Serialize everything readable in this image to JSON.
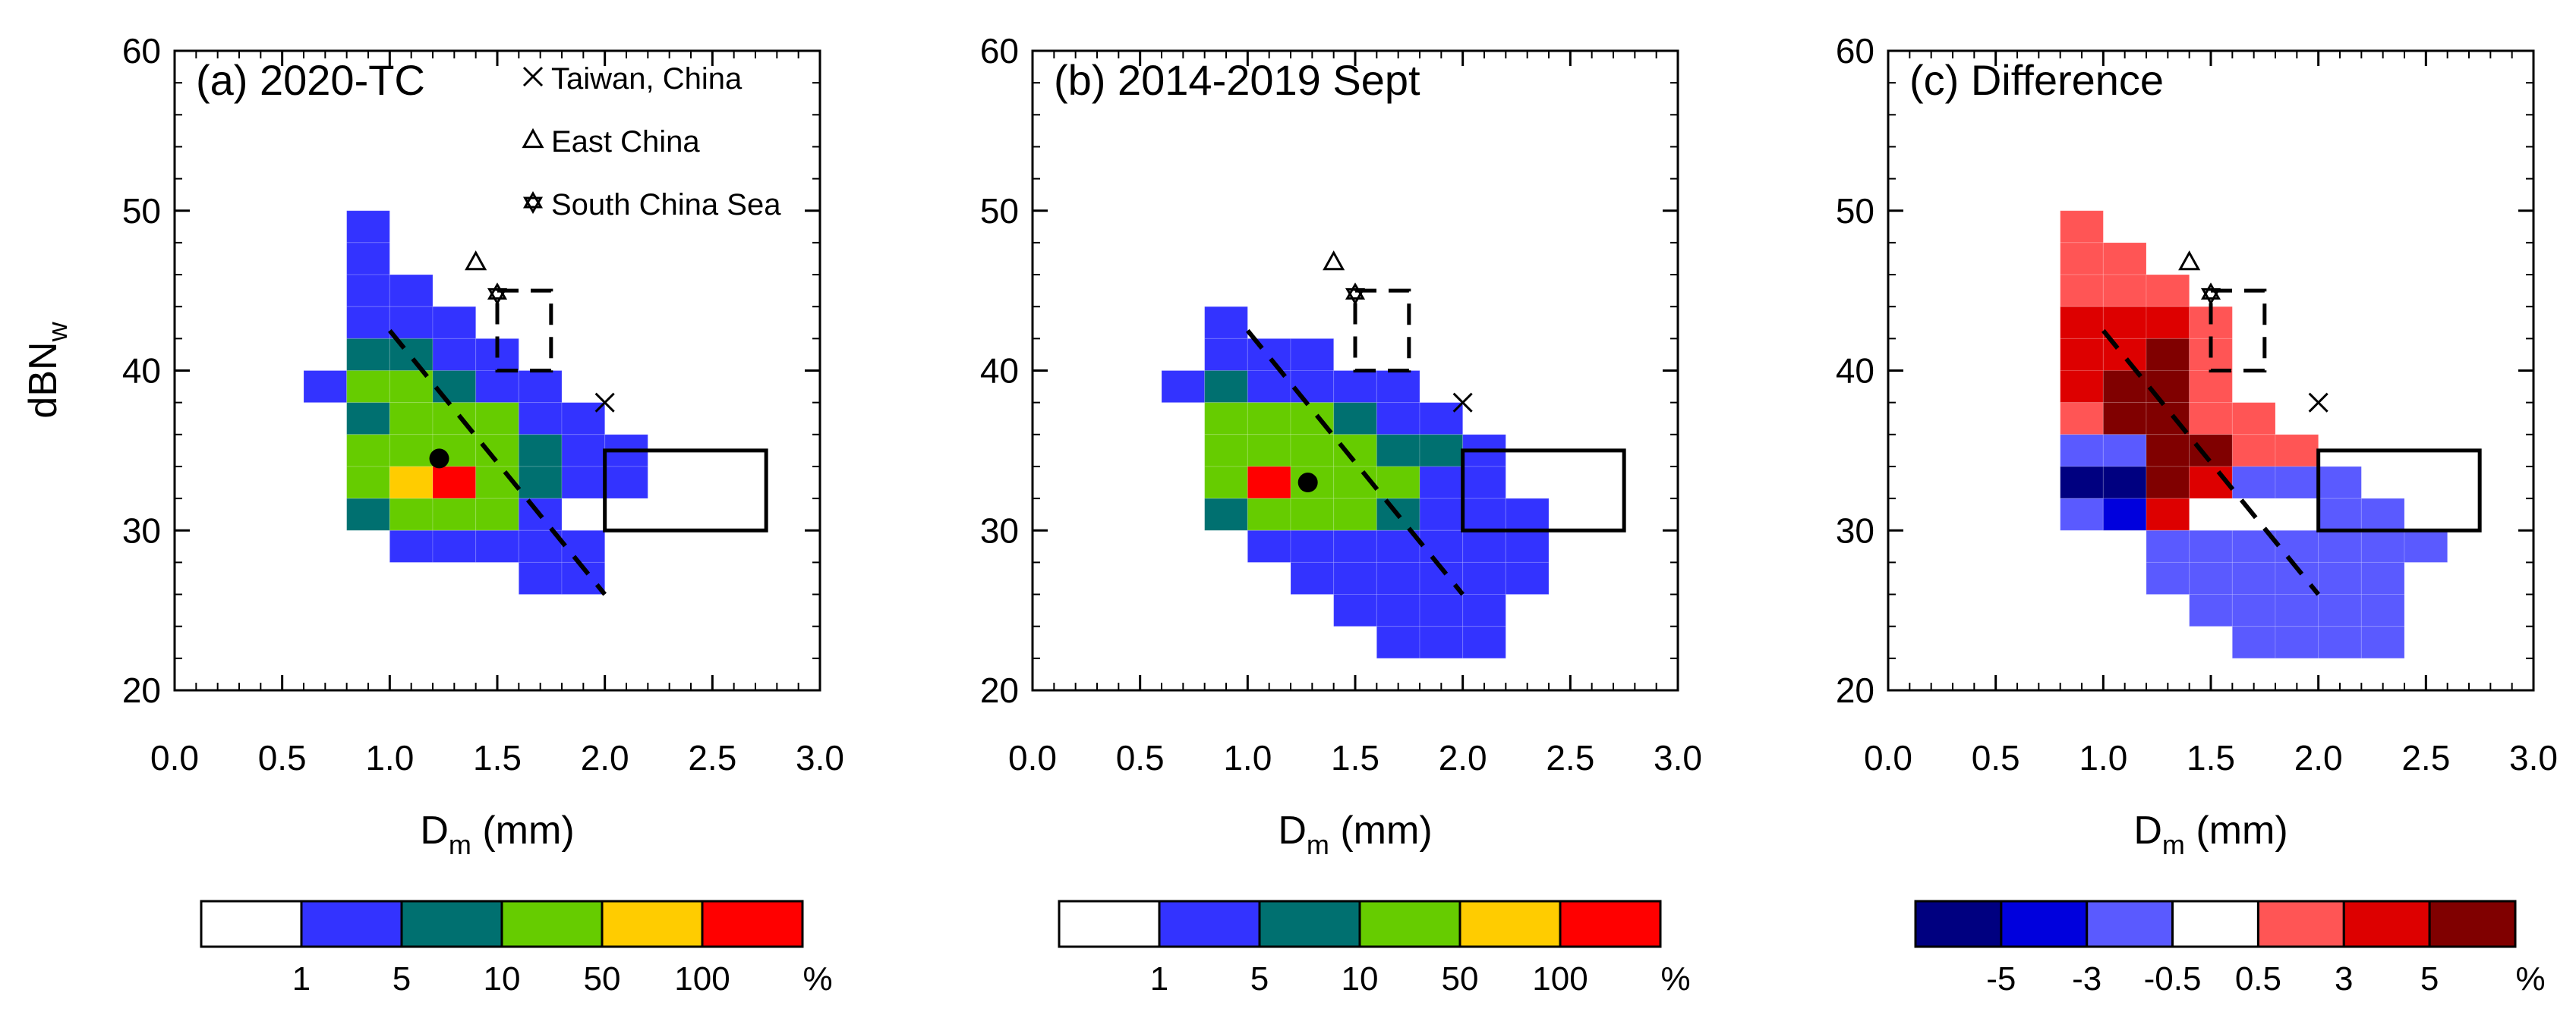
{
  "chart_data": [
    {
      "type": "heatmap",
      "panel": "a",
      "title": "(a) 2020-TC",
      "xlabel_main": "D",
      "xlabel_sub": "m",
      "xlabel_unit": " (mm)",
      "ylabel_main": "dBN",
      "ylabel_sub": "w",
      "xlim": [
        0,
        3
      ],
      "ylim": [
        20,
        60
      ],
      "xticks": [
        "0.0",
        "0.5",
        "1.0",
        "1.5",
        "2.0",
        "2.5",
        "3.0"
      ],
      "yticks": [
        "20",
        "30",
        "40",
        "50",
        "60"
      ],
      "cell_size": {
        "dx": 0.2,
        "dy": 2
      },
      "legend": [
        {
          "marker": "cross",
          "label": "Taiwan, China"
        },
        {
          "marker": "triangle",
          "label": "East China"
        },
        {
          "marker": "star",
          "label": "South China Sea"
        }
      ],
      "colorbar": {
        "colors": [
          "#ffffff",
          "#3333ff",
          "#007070",
          "#66cc00",
          "#ffcc00",
          "#ff0000"
        ],
        "labels": [
          "1",
          "5",
          "10",
          "50",
          "100"
        ],
        "unit": "%"
      },
      "reference_markers": [
        {
          "type": "cross",
          "x": 2.0,
          "y": 38
        },
        {
          "type": "triangle",
          "x": 1.4,
          "y": 46.8
        },
        {
          "type": "star",
          "x": 1.5,
          "y": 44.8
        }
      ],
      "mean_point": {
        "x": 1.23,
        "y": 34.5
      },
      "fit_line": {
        "x": [
          1.0,
          2.0
        ],
        "y": [
          42.5,
          26
        ]
      },
      "box_solid": {
        "x": [
          2.0,
          2.75
        ],
        "y": [
          30,
          35
        ]
      },
      "box_dashed": {
        "x": [
          1.5,
          1.75
        ],
        "y": [
          40,
          45
        ]
      },
      "cells": [
        [
          0.8,
          48,
          1
        ],
        [
          0.8,
          46,
          1
        ],
        [
          0.8,
          44,
          1
        ],
        [
          1.0,
          44,
          1
        ],
        [
          0.8,
          42,
          1
        ],
        [
          1.0,
          42,
          1
        ],
        [
          1.2,
          42,
          1
        ],
        [
          0.8,
          40,
          2
        ],
        [
          1.0,
          40,
          2
        ],
        [
          1.2,
          40,
          1
        ],
        [
          1.4,
          40,
          1
        ],
        [
          0.6,
          38,
          1
        ],
        [
          0.8,
          38,
          3
        ],
        [
          1.0,
          38,
          3
        ],
        [
          1.2,
          38,
          2
        ],
        [
          1.4,
          38,
          1
        ],
        [
          1.6,
          38,
          1
        ],
        [
          0.8,
          36,
          2
        ],
        [
          1.0,
          36,
          3
        ],
        [
          1.2,
          36,
          3
        ],
        [
          1.4,
          36,
          3
        ],
        [
          1.6,
          36,
          1
        ],
        [
          1.8,
          36,
          1
        ],
        [
          0.8,
          34,
          3
        ],
        [
          1.0,
          34,
          3
        ],
        [
          1.2,
          34,
          3
        ],
        [
          1.4,
          34,
          3
        ],
        [
          1.6,
          34,
          2
        ],
        [
          1.8,
          34,
          1
        ],
        [
          2.0,
          34,
          1
        ],
        [
          0.8,
          32,
          3
        ],
        [
          1.0,
          32,
          4
        ],
        [
          1.2,
          32,
          5
        ],
        [
          1.4,
          32,
          3
        ],
        [
          1.6,
          32,
          2
        ],
        [
          1.8,
          32,
          1
        ],
        [
          2.0,
          32,
          1
        ],
        [
          0.8,
          30,
          2
        ],
        [
          1.0,
          30,
          3
        ],
        [
          1.2,
          30,
          3
        ],
        [
          1.4,
          30,
          3
        ],
        [
          1.6,
          30,
          1
        ],
        [
          1.0,
          28,
          1
        ],
        [
          1.2,
          28,
          1
        ],
        [
          1.4,
          28,
          1
        ],
        [
          1.6,
          28,
          1
        ],
        [
          1.8,
          28,
          1
        ],
        [
          1.6,
          26,
          1
        ],
        [
          1.8,
          26,
          1
        ]
      ]
    },
    {
      "type": "heatmap",
      "panel": "b",
      "title": "(b) 2014-2019 Sept",
      "xlabel_main": "D",
      "xlabel_sub": "m",
      "xlabel_unit": " (mm)",
      "xlim": [
        0,
        3
      ],
      "ylim": [
        20,
        60
      ],
      "xticks": [
        "0.0",
        "0.5",
        "1.0",
        "1.5",
        "2.0",
        "2.5",
        "3.0"
      ],
      "yticks": [
        "20",
        "30",
        "40",
        "50",
        "60"
      ],
      "cell_size": {
        "dx": 0.2,
        "dy": 2
      },
      "colorbar": {
        "colors": [
          "#ffffff",
          "#3333ff",
          "#007070",
          "#66cc00",
          "#ffcc00",
          "#ff0000"
        ],
        "labels": [
          "1",
          "5",
          "10",
          "50",
          "100"
        ],
        "unit": "%"
      },
      "reference_markers": [
        {
          "type": "cross",
          "x": 2.0,
          "y": 38
        },
        {
          "type": "triangle",
          "x": 1.4,
          "y": 46.8
        },
        {
          "type": "star",
          "x": 1.5,
          "y": 44.8
        }
      ],
      "mean_point": {
        "x": 1.28,
        "y": 33
      },
      "fit_line": {
        "x": [
          1.0,
          2.0
        ],
        "y": [
          42.5,
          26
        ]
      },
      "box_solid": {
        "x": [
          2.0,
          2.75
        ],
        "y": [
          30,
          35
        ]
      },
      "box_dashed": {
        "x": [
          1.5,
          1.75
        ],
        "y": [
          40,
          45
        ]
      },
      "cells": [
        [
          0.8,
          42,
          1
        ],
        [
          0.8,
          40,
          1
        ],
        [
          1.0,
          40,
          1
        ],
        [
          1.2,
          40,
          1
        ],
        [
          0.6,
          38,
          1
        ],
        [
          0.8,
          38,
          2
        ],
        [
          1.0,
          38,
          1
        ],
        [
          1.2,
          38,
          1
        ],
        [
          1.4,
          38,
          1
        ],
        [
          1.6,
          38,
          1
        ],
        [
          0.8,
          36,
          3
        ],
        [
          1.0,
          36,
          3
        ],
        [
          1.2,
          36,
          3
        ],
        [
          1.4,
          36,
          2
        ],
        [
          1.6,
          36,
          1
        ],
        [
          1.8,
          36,
          1
        ],
        [
          0.8,
          34,
          3
        ],
        [
          1.0,
          34,
          3
        ],
        [
          1.2,
          34,
          3
        ],
        [
          1.4,
          34,
          3
        ],
        [
          1.6,
          34,
          2
        ],
        [
          1.8,
          34,
          2
        ],
        [
          2.0,
          34,
          1
        ],
        [
          0.8,
          32,
          3
        ],
        [
          1.0,
          32,
          5
        ],
        [
          1.2,
          32,
          3
        ],
        [
          1.4,
          32,
          3
        ],
        [
          1.6,
          32,
          3
        ],
        [
          1.8,
          32,
          1
        ],
        [
          2.0,
          32,
          1
        ],
        [
          0.8,
          30,
          2
        ],
        [
          1.0,
          30,
          3
        ],
        [
          1.2,
          30,
          3
        ],
        [
          1.4,
          30,
          3
        ],
        [
          1.6,
          30,
          2
        ],
        [
          1.8,
          30,
          1
        ],
        [
          2.0,
          30,
          1
        ],
        [
          2.2,
          30,
          1
        ],
        [
          1.0,
          28,
          1
        ],
        [
          1.2,
          28,
          1
        ],
        [
          1.4,
          28,
          1
        ],
        [
          1.6,
          28,
          1
        ],
        [
          1.8,
          28,
          1
        ],
        [
          2.0,
          28,
          1
        ],
        [
          2.2,
          28,
          1
        ],
        [
          1.2,
          26,
          1
        ],
        [
          1.4,
          26,
          1
        ],
        [
          1.6,
          26,
          1
        ],
        [
          1.8,
          26,
          1
        ],
        [
          2.0,
          26,
          1
        ],
        [
          2.2,
          26,
          1
        ],
        [
          1.4,
          24,
          1
        ],
        [
          1.6,
          24,
          1
        ],
        [
          1.8,
          24,
          1
        ],
        [
          2.0,
          24,
          1
        ],
        [
          1.6,
          22,
          1
        ],
        [
          1.8,
          22,
          1
        ],
        [
          2.0,
          22,
          1
        ]
      ]
    },
    {
      "type": "heatmap",
      "panel": "c",
      "title": "(c) Difference",
      "xlabel_main": "D",
      "xlabel_sub": "m",
      "xlabel_unit": " (mm)",
      "xlim": [
        0,
        3
      ],
      "ylim": [
        20,
        60
      ],
      "xticks": [
        "0.0",
        "0.5",
        "1.0",
        "1.5",
        "2.0",
        "2.5",
        "3.0"
      ],
      "yticks": [
        "20",
        "30",
        "40",
        "50",
        "60"
      ],
      "cell_size": {
        "dx": 0.2,
        "dy": 2
      },
      "colorbar": {
        "colors": [
          "#000080",
          "#0000dd",
          "#5a5aff",
          "#ffffff",
          "#ff5555",
          "#dd0000",
          "#800000"
        ],
        "labels": [
          "-5",
          "-3",
          "-0.5",
          "0.5",
          "3",
          "5"
        ],
        "unit": "%"
      },
      "reference_markers": [
        {
          "type": "cross",
          "x": 2.0,
          "y": 38
        },
        {
          "type": "triangle",
          "x": 1.4,
          "y": 46.8
        },
        {
          "type": "star",
          "x": 1.5,
          "y": 44.8
        }
      ],
      "fit_line": {
        "x": [
          1.0,
          2.0
        ],
        "y": [
          42.5,
          26
        ]
      },
      "box_solid": {
        "x": [
          2.0,
          2.75
        ],
        "y": [
          30,
          35
        ]
      },
      "box_dashed": {
        "x": [
          1.5,
          1.75
        ],
        "y": [
          40,
          45
        ]
      },
      "cells": [
        [
          0.8,
          48,
          4
        ],
        [
          0.8,
          46,
          4
        ],
        [
          1.0,
          46,
          4
        ],
        [
          0.8,
          44,
          4
        ],
        [
          1.0,
          44,
          4
        ],
        [
          1.2,
          44,
          4
        ],
        [
          0.8,
          42,
          5
        ],
        [
          1.0,
          42,
          5
        ],
        [
          1.2,
          42,
          5
        ],
        [
          1.4,
          42,
          4
        ],
        [
          0.8,
          40,
          5
        ],
        [
          1.0,
          40,
          5
        ],
        [
          1.2,
          40,
          6
        ],
        [
          1.4,
          40,
          4
        ],
        [
          0.8,
          38,
          5
        ],
        [
          1.0,
          38,
          6
        ],
        [
          1.2,
          38,
          6
        ],
        [
          1.4,
          38,
          4
        ],
        [
          0.8,
          36,
          4
        ],
        [
          1.0,
          36,
          6
        ],
        [
          1.2,
          36,
          6
        ],
        [
          1.4,
          36,
          4
        ],
        [
          1.6,
          36,
          4
        ],
        [
          0.8,
          34,
          2
        ],
        [
          1.0,
          34,
          2
        ],
        [
          1.2,
          34,
          6
        ],
        [
          1.4,
          34,
          6
        ],
        [
          1.6,
          34,
          4
        ],
        [
          1.8,
          34,
          4
        ],
        [
          0.8,
          32,
          0
        ],
        [
          1.0,
          32,
          0
        ],
        [
          1.2,
          32,
          6
        ],
        [
          1.4,
          32,
          5
        ],
        [
          1.6,
          32,
          2
        ],
        [
          1.8,
          32,
          2
        ],
        [
          2.0,
          32,
          2
        ],
        [
          0.8,
          30,
          2
        ],
        [
          1.0,
          30,
          1
        ],
        [
          1.2,
          30,
          5
        ],
        [
          2.0,
          30,
          2
        ],
        [
          2.2,
          30,
          2
        ],
        [
          1.2,
          28,
          2
        ],
        [
          1.4,
          28,
          2
        ],
        [
          1.6,
          28,
          2
        ],
        [
          1.8,
          28,
          2
        ],
        [
          2.0,
          28,
          2
        ],
        [
          2.2,
          28,
          2
        ],
        [
          2.4,
          28,
          2
        ],
        [
          1.2,
          26,
          2
        ],
        [
          1.4,
          26,
          2
        ],
        [
          1.6,
          26,
          2
        ],
        [
          1.8,
          26,
          2
        ],
        [
          2.0,
          26,
          2
        ],
        [
          2.2,
          26,
          2
        ],
        [
          1.4,
          24,
          2
        ],
        [
          1.6,
          24,
          2
        ],
        [
          1.8,
          24,
          2
        ],
        [
          2.0,
          24,
          2
        ],
        [
          2.2,
          24,
          2
        ],
        [
          1.6,
          22,
          2
        ],
        [
          1.8,
          22,
          2
        ],
        [
          2.0,
          22,
          2
        ],
        [
          2.2,
          22,
          2
        ]
      ]
    }
  ]
}
